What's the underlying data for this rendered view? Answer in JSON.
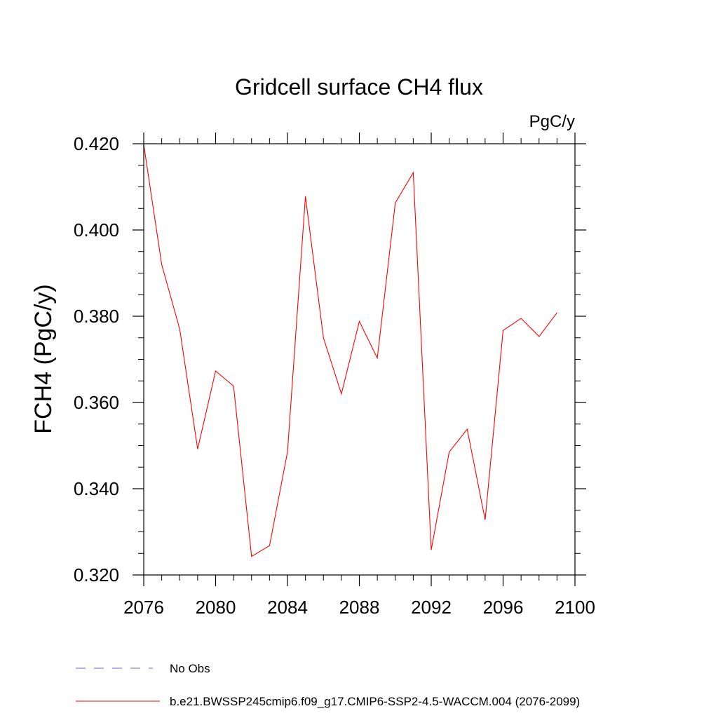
{
  "chart_data": {
    "type": "line",
    "title": "Gridcell surface CH4 flux",
    "units_label": "PgC/y",
    "ylabel": "FCH4  (PgC/y)",
    "xlabel": "",
    "xlim": [
      2076,
      2100
    ],
    "ylim": [
      0.32,
      0.42
    ],
    "x_ticks": [
      2076,
      2080,
      2084,
      2088,
      2092,
      2096,
      2100
    ],
    "x_tick_labels": [
      "2076",
      "2080",
      "2084",
      "2088",
      "2092",
      "2096",
      "2100"
    ],
    "x_minor_step": 1,
    "y_ticks": [
      0.32,
      0.34,
      0.36,
      0.38,
      0.4,
      0.42
    ],
    "y_tick_labels": [
      "0.320",
      "0.340",
      "0.360",
      "0.380",
      "0.400",
      "0.420"
    ],
    "y_minor_step": 0.005,
    "grid": false,
    "legend_position": "bottom",
    "series": [
      {
        "name": "b.e21.BWSSP245cmip6.f09_g17.CMIP6-SSP2-4.5-WACCM.004 (2076-2099)",
        "color": "#ff0000",
        "style": "solid",
        "x": [
          2076,
          2077,
          2078,
          2079,
          2080,
          2081,
          2082,
          2083,
          2084,
          2085,
          2086,
          2087,
          2088,
          2089,
          2090,
          2091,
          2092,
          2093,
          2094,
          2095,
          2096,
          2097,
          2098,
          2099
        ],
        "values": [
          0.4198,
          0.392,
          0.377,
          0.3492,
          0.3673,
          0.3638,
          0.3243,
          0.3268,
          0.3485,
          0.4078,
          0.375,
          0.362,
          0.3788,
          0.3703,
          0.4063,
          0.4133,
          0.3258,
          0.3485,
          0.3538,
          0.3328,
          0.3767,
          0.3795,
          0.3753,
          0.3808
        ]
      }
    ],
    "legend": [
      {
        "label": "No Obs",
        "color": "#6a5acd",
        "style": "dashed"
      },
      {
        "label": "b.e21.BWSSP245cmip6.f09_g17.CMIP6-SSP2-4.5-WACCM.004 (2076-2099)",
        "color": "#ff0000",
        "style": "solid"
      }
    ]
  }
}
